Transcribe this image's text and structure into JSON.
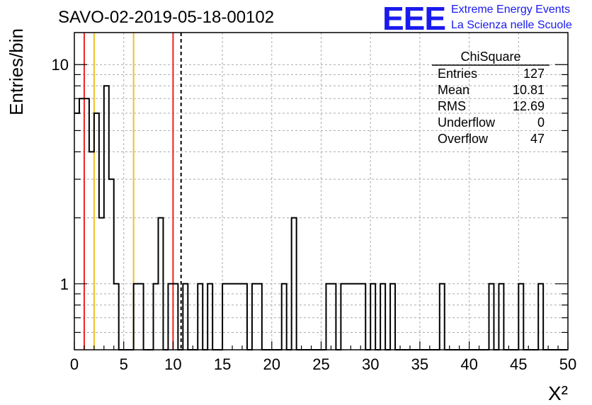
{
  "chart_data": {
    "type": "histogram",
    "title": "SAVO-02-2019-05-18-00102",
    "xlabel": "X²",
    "ylabel": "Entries/bin",
    "xlim": [
      0,
      50
    ],
    "ylim": [
      0.5,
      14
    ],
    "y_scale": "log",
    "grid": true,
    "bin_width": 0.5,
    "x_ticks": [
      "0",
      "5",
      "10",
      "15",
      "20",
      "25",
      "30",
      "35",
      "40",
      "45",
      "50"
    ],
    "x_tick_values": [
      0,
      5,
      10,
      15,
      20,
      25,
      30,
      35,
      40,
      45,
      50
    ],
    "y_ticks": [
      "1",
      "10"
    ],
    "y_tick_values": [
      1,
      10
    ],
    "bins": [
      {
        "x": 0.0,
        "y": 6
      },
      {
        "x": 0.5,
        "y": 7
      },
      {
        "x": 1.0,
        "y": 7
      },
      {
        "x": 1.5,
        "y": 4
      },
      {
        "x": 2.0,
        "y": 6
      },
      {
        "x": 2.5,
        "y": 2
      },
      {
        "x": 3.0,
        "y": 8
      },
      {
        "x": 3.5,
        "y": 3
      },
      {
        "x": 4.0,
        "y": 1
      },
      {
        "x": 4.5,
        "y": 0
      },
      {
        "x": 5.0,
        "y": 0
      },
      {
        "x": 5.5,
        "y": 0
      },
      {
        "x": 6.0,
        "y": 1
      },
      {
        "x": 6.5,
        "y": 1
      },
      {
        "x": 7.0,
        "y": 0
      },
      {
        "x": 7.5,
        "y": 0
      },
      {
        "x": 8.0,
        "y": 1
      },
      {
        "x": 8.5,
        "y": 2
      },
      {
        "x": 9.0,
        "y": 0
      },
      {
        "x": 9.5,
        "y": 1
      },
      {
        "x": 10.0,
        "y": 1
      },
      {
        "x": 10.5,
        "y": 0
      },
      {
        "x": 11.0,
        "y": 1
      },
      {
        "x": 11.5,
        "y": 0
      },
      {
        "x": 12.5,
        "y": 1
      },
      {
        "x": 13.5,
        "y": 1
      },
      {
        "x": 15.0,
        "y": 1
      },
      {
        "x": 15.5,
        "y": 1
      },
      {
        "x": 16.0,
        "y": 1
      },
      {
        "x": 16.5,
        "y": 1
      },
      {
        "x": 17.0,
        "y": 1
      },
      {
        "x": 18.0,
        "y": 1
      },
      {
        "x": 18.5,
        "y": 1
      },
      {
        "x": 21.0,
        "y": 1
      },
      {
        "x": 22.0,
        "y": 2
      },
      {
        "x": 25.5,
        "y": 1
      },
      {
        "x": 26.0,
        "y": 1
      },
      {
        "x": 27.0,
        "y": 1
      },
      {
        "x": 27.5,
        "y": 1
      },
      {
        "x": 28.0,
        "y": 1
      },
      {
        "x": 28.5,
        "y": 1
      },
      {
        "x": 29.0,
        "y": 1
      },
      {
        "x": 30.0,
        "y": 1
      },
      {
        "x": 31.0,
        "y": 1
      },
      {
        "x": 32.0,
        "y": 1
      },
      {
        "x": 37.0,
        "y": 1
      },
      {
        "x": 42.0,
        "y": 1
      },
      {
        "x": 43.0,
        "y": 1
      },
      {
        "x": 45.0,
        "y": 1
      },
      {
        "x": 47.0,
        "y": 1
      }
    ],
    "vertical_lines": [
      {
        "x": 1.0,
        "color": "#ee2222",
        "style": "solid"
      },
      {
        "x": 2.0,
        "color": "#f0c020",
        "style": "solid"
      },
      {
        "x": 6.0,
        "color": "#f0c020",
        "style": "solid"
      },
      {
        "x": 10.0,
        "color": "#ee2222",
        "style": "solid"
      },
      {
        "x": 10.81,
        "color": "#000000",
        "style": "dashed"
      }
    ],
    "stats": {
      "title": "ChiSquare",
      "rows": [
        {
          "label": "Entries",
          "value": "127"
        },
        {
          "label": "Mean",
          "value": "10.81"
        },
        {
          "label": "RMS",
          "value": "12.69"
        },
        {
          "label": "Underflow",
          "value": "0"
        },
        {
          "label": "Overflow",
          "value": "47"
        }
      ]
    }
  },
  "logo": {
    "text": "EEE",
    "line1": "Extreme Energy Events",
    "line2": "La Scienza nelle Scuole",
    "color": "#1a1aee"
  }
}
